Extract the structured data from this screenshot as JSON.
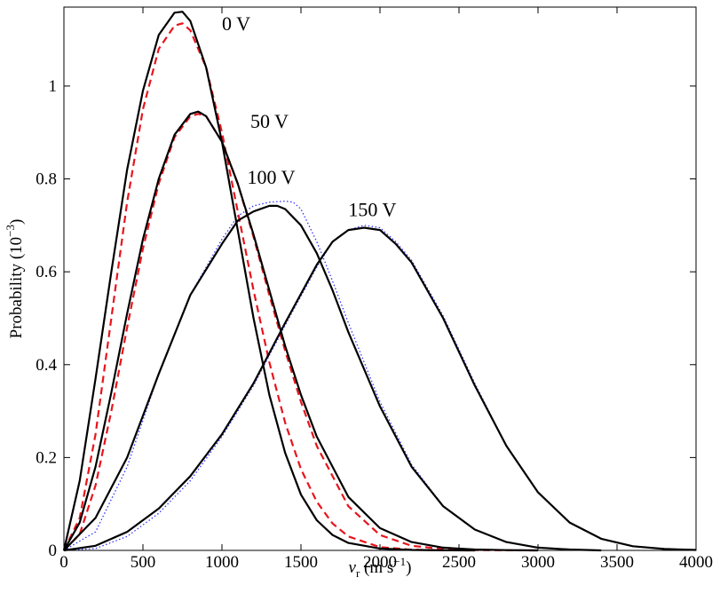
{
  "chart_data": {
    "type": "line",
    "title": "",
    "xlabel": {
      "var": "v",
      "sub": "r",
      "unit_pre": "(m s",
      "unit_sup": "−1",
      "unit_post": ")"
    },
    "ylabel": {
      "text": "Probability",
      "unit_pre": "(10",
      "unit_sup": "−3",
      "unit_post": ")"
    },
    "xlim": [
      0,
      4000
    ],
    "ylim": [
      0,
      1.17
    ],
    "xticks": [
      0,
      500,
      1000,
      1500,
      2000,
      2500,
      3000,
      3500,
      4000
    ],
    "yticks": [
      0,
      0.2,
      0.4,
      0.6,
      0.8,
      1
    ],
    "xtick_labels": [
      "0",
      "500",
      "1000",
      "1500",
      "2000",
      "2500",
      "3000",
      "3500",
      "4000"
    ],
    "ytick_labels": [
      "0",
      "0.2",
      "0.4",
      "0.6",
      "0.8",
      "1"
    ],
    "grid": false,
    "annotations": [
      {
        "text": "0 V",
        "x": 1000,
        "y": 1.12
      },
      {
        "text": "50 V",
        "x": 1180,
        "y": 0.91
      },
      {
        "text": "100 V",
        "x": 1160,
        "y": 0.79
      },
      {
        "text": "150 V",
        "x": 1800,
        "y": 0.72
      }
    ],
    "series": [
      {
        "style": "solid",
        "color": "#000000",
        "x": [
          0,
          100,
          200,
          300,
          400,
          500,
          600,
          700,
          750,
          800,
          900,
          1000,
          1100,
          1200,
          1300,
          1400,
          1500,
          1600,
          1700,
          1800,
          2000,
          2200,
          2400,
          2600
        ],
        "y": [
          0,
          0.15,
          0.37,
          0.6,
          0.82,
          0.99,
          1.11,
          1.158,
          1.16,
          1.14,
          1.04,
          0.88,
          0.69,
          0.5,
          0.335,
          0.21,
          0.12,
          0.065,
          0.033,
          0.016,
          0.004,
          0.001,
          0.0002,
          0
        ]
      },
      {
        "style": "dashed",
        "color": "#e8141c",
        "x": [
          0,
          100,
          200,
          300,
          400,
          500,
          600,
          700,
          750,
          800,
          900,
          1000,
          1100,
          1200,
          1300,
          1400,
          1500,
          1600,
          1700,
          1800,
          2000,
          2200,
          2400,
          2600
        ],
        "y": [
          0,
          0.07,
          0.25,
          0.5,
          0.75,
          0.95,
          1.08,
          1.13,
          1.135,
          1.12,
          1.04,
          0.9,
          0.73,
          0.56,
          0.405,
          0.275,
          0.175,
          0.105,
          0.058,
          0.03,
          0.007,
          0.0015,
          0.0003,
          0
        ]
      },
      {
        "style": "solid",
        "color": "#000000",
        "x": [
          0,
          100,
          200,
          300,
          400,
          500,
          600,
          700,
          800,
          850,
          900,
          1000,
          1100,
          1200,
          1300,
          1400,
          1500,
          1600,
          1800,
          2000,
          2200,
          2400,
          2600,
          2800,
          3000
        ],
        "y": [
          0,
          0.06,
          0.18,
          0.34,
          0.51,
          0.67,
          0.8,
          0.895,
          0.94,
          0.945,
          0.935,
          0.88,
          0.79,
          0.68,
          0.56,
          0.44,
          0.335,
          0.245,
          0.115,
          0.048,
          0.018,
          0.006,
          0.002,
          0.0005,
          0
        ]
      },
      {
        "style": "dashed",
        "color": "#e8141c",
        "x": [
          0,
          100,
          200,
          300,
          400,
          500,
          600,
          700,
          800,
          850,
          900,
          1000,
          1100,
          1200,
          1300,
          1400,
          1500,
          1600,
          1800,
          2000,
          2200,
          2400,
          2600,
          2800,
          3000
        ],
        "y": [
          0,
          0.035,
          0.14,
          0.3,
          0.48,
          0.65,
          0.79,
          0.89,
          0.935,
          0.94,
          0.935,
          0.88,
          0.79,
          0.675,
          0.55,
          0.43,
          0.32,
          0.225,
          0.095,
          0.033,
          0.01,
          0.003,
          0.0008,
          0.0002,
          0
        ]
      },
      {
        "style": "solid",
        "color": "#000000",
        "x": [
          0,
          200,
          400,
          600,
          800,
          1000,
          1100,
          1200,
          1300,
          1350,
          1400,
          1500,
          1600,
          1700,
          1800,
          2000,
          2200,
          2400,
          2600,
          2800,
          3000,
          3200,
          3400
        ],
        "y": [
          0,
          0.07,
          0.2,
          0.38,
          0.55,
          0.66,
          0.71,
          0.73,
          0.742,
          0.742,
          0.735,
          0.7,
          0.64,
          0.56,
          0.47,
          0.31,
          0.18,
          0.095,
          0.045,
          0.018,
          0.006,
          0.002,
          0
        ]
      },
      {
        "style": "dotted",
        "color": "#3333ff",
        "x": [
          0,
          200,
          400,
          600,
          800,
          1000,
          1100,
          1200,
          1300,
          1400,
          1450,
          1500,
          1600,
          1700,
          1800,
          2000,
          2200,
          2400,
          2600,
          2800,
          3000,
          3200,
          3400
        ],
        "y": [
          0,
          0.04,
          0.18,
          0.38,
          0.55,
          0.67,
          0.72,
          0.742,
          0.75,
          0.752,
          0.75,
          0.735,
          0.665,
          0.58,
          0.49,
          0.32,
          0.185,
          0.095,
          0.045,
          0.018,
          0.006,
          0.002,
          0
        ]
      },
      {
        "style": "solid",
        "color": "#000000",
        "x": [
          0,
          200,
          400,
          600,
          800,
          1000,
          1200,
          1400,
          1600,
          1700,
          1800,
          1900,
          2000,
          2100,
          2200,
          2400,
          2600,
          2800,
          3000,
          3200,
          3400,
          3600,
          3800,
          4000
        ],
        "y": [
          0,
          0.01,
          0.04,
          0.09,
          0.16,
          0.25,
          0.36,
          0.49,
          0.615,
          0.665,
          0.69,
          0.695,
          0.69,
          0.66,
          0.62,
          0.5,
          0.355,
          0.225,
          0.125,
          0.06,
          0.025,
          0.009,
          0.003,
          0.001
        ]
      },
      {
        "style": "dotted",
        "color": "#3333ff",
        "x": [
          0,
          200,
          400,
          600,
          800,
          1000,
          1200,
          1400,
          1600,
          1700,
          1800,
          1900,
          2000,
          2100,
          2200,
          2400,
          2600,
          2800,
          3000,
          3200,
          3400,
          3600,
          3800,
          4000
        ],
        "y": [
          0,
          0.004,
          0.03,
          0.08,
          0.15,
          0.245,
          0.355,
          0.485,
          0.61,
          0.665,
          0.69,
          0.7,
          0.695,
          0.665,
          0.625,
          0.505,
          0.36,
          0.225,
          0.125,
          0.06,
          0.025,
          0.009,
          0.003,
          0.001
        ]
      }
    ]
  }
}
